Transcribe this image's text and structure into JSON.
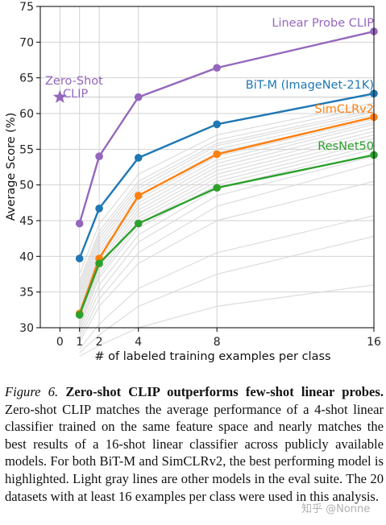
{
  "chart_data": {
    "type": "line",
    "xlabel": "# of labeled training examples per class",
    "ylabel": "Average Score (%)",
    "x_ticks": [
      0,
      1,
      2,
      4,
      8,
      16
    ],
    "y_ticks": [
      30,
      35,
      40,
      45,
      50,
      55,
      60,
      65,
      70,
      75
    ],
    "xlim": [
      -1,
      16
    ],
    "ylim": [
      30,
      75
    ],
    "grid": true,
    "zero_shot": {
      "label_line1": "Zero-Shot",
      "label_line2": "CLIP",
      "x": 0,
      "y": 62.3,
      "color": "#9467bd"
    },
    "series": [
      {
        "name": "Linear Probe CLIP",
        "color": "#9467bd",
        "x": [
          1,
          2,
          4,
          8,
          16
        ],
        "values": [
          44.6,
          54.0,
          62.3,
          66.4,
          71.5
        ]
      },
      {
        "name": "BiT-M (ImageNet-21K)",
        "color": "#1f77b4",
        "x": [
          1,
          2,
          4,
          8,
          16
        ],
        "values": [
          39.7,
          46.7,
          53.8,
          58.5,
          62.8
        ]
      },
      {
        "name": "SimCLRv2",
        "color": "#ff7f0e",
        "x": [
          1,
          2,
          4,
          8,
          16
        ],
        "values": [
          32.0,
          39.7,
          48.5,
          54.3,
          59.5
        ]
      },
      {
        "name": "ResNet50",
        "color": "#2ca02c",
        "x": [
          1,
          2,
          4,
          8,
          16
        ],
        "values": [
          31.8,
          39.0,
          44.6,
          49.6,
          54.2
        ]
      }
    ],
    "gray_lines": [
      [
        37.5,
        44.5,
        51.5,
        57.0,
        61.5
      ],
      [
        36.5,
        43.5,
        50.5,
        56.3,
        61.0
      ],
      [
        36.0,
        43.0,
        50.0,
        55.8,
        60.5
      ],
      [
        35.5,
        42.5,
        49.5,
        55.5,
        60.2
      ],
      [
        35.0,
        42.0,
        49.0,
        55.0,
        59.8
      ],
      [
        34.5,
        41.5,
        48.5,
        54.5,
        59.5
      ],
      [
        34.0,
        41.0,
        48.0,
        54.0,
        59.2
      ],
      [
        33.5,
        40.5,
        47.5,
        53.5,
        58.8
      ],
      [
        33.0,
        40.0,
        47.0,
        53.0,
        58.5
      ],
      [
        32.5,
        39.5,
        46.5,
        52.5,
        58.0
      ],
      [
        32.0,
        39.0,
        46.0,
        52.0,
        57.5
      ],
      [
        31.5,
        38.5,
        45.5,
        51.5,
        57.0
      ],
      [
        31.0,
        38.0,
        45.0,
        51.0,
        56.5
      ],
      [
        30.5,
        37.5,
        44.5,
        50.5,
        56.0
      ],
      [
        30.0,
        37.0,
        44.0,
        50.0,
        55.5
      ],
      [
        29.5,
        36.0,
        43.0,
        49.5,
        55.0
      ],
      [
        29.0,
        35.0,
        42.0,
        48.5,
        54.0
      ],
      [
        28.5,
        34.0,
        40.5,
        47.0,
        53.0
      ],
      [
        28.0,
        33.0,
        39.0,
        45.0,
        50.5
      ],
      [
        27.0,
        30.5,
        35.5,
        40.5,
        45.7
      ],
      [
        26.5,
        29.0,
        33.0,
        37.5,
        42.8
      ],
      [
        26.0,
        27.5,
        30.0,
        33.0,
        36.0
      ]
    ],
    "gray_color": "#d4d4d4"
  },
  "caption": {
    "label": "Figure 6.",
    "title": "Zero-shot CLIP outperforms few-shot linear probes.",
    "body": "Zero-shot CLIP matches the average performance of a 4-shot linear classifier trained on the same feature space and nearly matches the best results of a 16-shot linear classifier across publicly available models. For both BiT-M and SimCLRv2, the best performing model is highlighted. Light gray lines are other models in the eval suite. The 20 datasets with at least 16 examples per class were used in this analysis."
  },
  "watermark": "知乎 @Nonne"
}
